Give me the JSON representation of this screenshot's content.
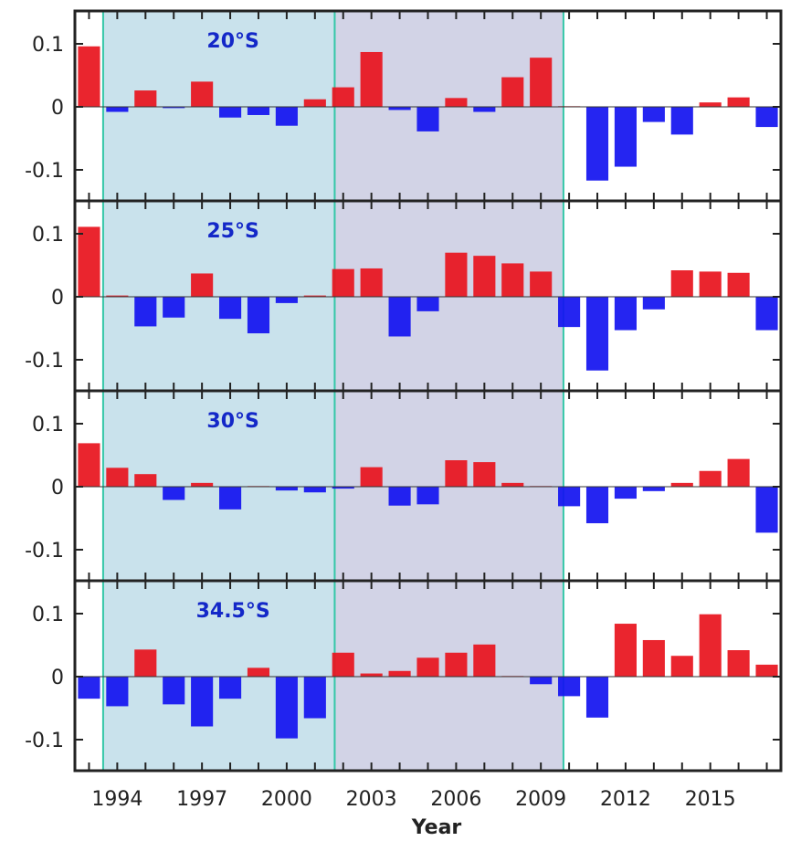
{
  "chart_data": {
    "type": "bar",
    "xlabel": "Year",
    "x_ticks": [
      1994,
      1997,
      2000,
      2003,
      2006,
      2009,
      2012,
      2015
    ],
    "y_ticks": [
      {
        "value": 0.1,
        "label": "0.1"
      },
      {
        "value": 0,
        "label": "0"
      },
      {
        "value": -0.1,
        "label": "-0.1"
      }
    ],
    "ylim": [
      -0.15,
      0.15
    ],
    "xlim": [
      1992.5,
      2017.5
    ],
    "colors": {
      "positive": "#e8141e",
      "negative": "#1414f0",
      "shade_1": "#c9e2ec",
      "shade_2": "#d2d3e6",
      "shade_border": "#35c7a8",
      "label": "#1428c8"
    },
    "shaded_periods": [
      {
        "start": 1993.5,
        "end": 2001.7
      },
      {
        "start": 2001.7,
        "end": 2009.8
      }
    ],
    "years": [
      1993,
      1994,
      1995,
      1996,
      1997,
      1998,
      1999,
      2000,
      2001,
      2002,
      2003,
      2004,
      2005,
      2006,
      2007,
      2008,
      2009,
      2010,
      2011,
      2012,
      2013,
      2014,
      2015,
      2016,
      2017
    ],
    "panels": [
      {
        "label": "20°S",
        "values": [
          0.096,
          -0.008,
          0.026,
          -0.002,
          0.04,
          -0.017,
          -0.013,
          -0.03,
          0.012,
          0.031,
          0.087,
          -0.005,
          -0.039,
          0.014,
          -0.008,
          0.047,
          0.078,
          0.001,
          -0.117,
          -0.095,
          -0.024,
          -0.044,
          0.007,
          0.015,
          -0.032
        ]
      },
      {
        "label": "25°S",
        "values": [
          0.111,
          0.002,
          -0.047,
          -0.033,
          0.037,
          -0.035,
          -0.058,
          -0.01,
          0.002,
          0.044,
          0.045,
          -0.063,
          -0.023,
          0.07,
          0.065,
          0.053,
          0.04,
          -0.048,
          -0.117,
          -0.053,
          -0.02,
          0.042,
          0.04,
          0.038,
          -0.053
        ]
      },
      {
        "label": "30°S",
        "values": [
          0.069,
          0.03,
          0.02,
          -0.021,
          0.006,
          -0.036,
          0.001,
          -0.006,
          -0.009,
          -0.003,
          0.031,
          -0.03,
          -0.028,
          0.042,
          0.039,
          0.006,
          0.001,
          -0.031,
          -0.058,
          -0.019,
          -0.007,
          0.006,
          0.025,
          0.044,
          -0.073
        ]
      },
      {
        "label": "34.5°S",
        "values": [
          -0.035,
          -0.047,
          0.043,
          -0.044,
          -0.079,
          -0.035,
          0.014,
          -0.098,
          -0.066,
          0.038,
          0.005,
          0.009,
          0.03,
          0.038,
          0.051,
          0.001,
          -0.012,
          -0.031,
          -0.065,
          0.084,
          0.058,
          0.033,
          0.099,
          0.042,
          0.019
        ]
      }
    ]
  }
}
